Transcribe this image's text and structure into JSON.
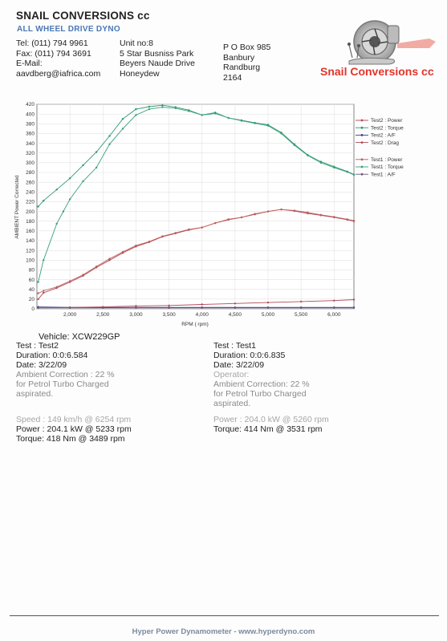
{
  "header": {
    "company": "SNAIL CONVERSIONS cc",
    "tagline": "ALL WHEEL DRIVE DYNO",
    "contact": [
      "Tel: (011) 794 9961",
      "Fax: (011) 794 3691",
      "E-Mail:",
      "aavdberg@iafrica.com"
    ],
    "address": [
      "Unit no:8",
      "5 Star Busniss Park",
      "Beyers Naude Drive",
      "Honeydew"
    ],
    "postal": [
      "P O Box 985",
      "Banbury",
      "Randburg",
      "2164"
    ],
    "logo_text": "Snail Conversions cc"
  },
  "chart_data": {
    "type": "line",
    "ylabel": "AMBIENT Power Corrected",
    "xlabel": "RPM ( rpm)",
    "xlim": [
      1500,
      6300
    ],
    "ylim": [
      0,
      420
    ],
    "xticks": [
      "2,000",
      "2,500",
      "3,000",
      "3,500",
      "4,000",
      "4,500",
      "5,000",
      "5,500",
      "6,000"
    ],
    "yticks": [
      "0",
      "20",
      "40",
      "60",
      "80",
      "100",
      "120",
      "140",
      "160",
      "180",
      "200",
      "220",
      "240",
      "260",
      "280",
      "300",
      "320",
      "340",
      "360",
      "380",
      "400",
      "420"
    ],
    "grid": true,
    "legend_position": "right",
    "legend": [
      "Test2 : Power",
      "Test2 : Torque",
      "Test2 : A/F",
      "Test2 : Drag",
      "Test1 : Power",
      "Test1 : Torque",
      "Test1 : A/F"
    ],
    "series": [
      {
        "name": "Test2 : Power",
        "color": "#b04a56",
        "x": [
          1520,
          1600,
          1800,
          2000,
          2200,
          2400,
          2600,
          2800,
          3000,
          3200,
          3400,
          3600,
          3800,
          4000,
          4200,
          4400,
          4600,
          4800,
          5000,
          5200,
          5400,
          5600,
          5800,
          6000,
          6200,
          6300
        ],
        "y": [
          20,
          33,
          43,
          55,
          68,
          85,
          100,
          115,
          128,
          137,
          148,
          155,
          162,
          167,
          176,
          183,
          188,
          194,
          200,
          204,
          201,
          196,
          192,
          188,
          183,
          180
        ]
      },
      {
        "name": "Test2 : Torque",
        "color": "#2e9a6e",
        "x": [
          1520,
          1600,
          1800,
          2000,
          2200,
          2400,
          2600,
          2800,
          3000,
          3200,
          3400,
          3600,
          3800,
          4000,
          4200,
          4400,
          4600,
          4800,
          5000,
          5200,
          5400,
          5600,
          5800,
          6000,
          6200,
          6300
        ],
        "y": [
          210,
          222,
          245,
          268,
          295,
          322,
          355,
          390,
          410,
          415,
          418,
          414,
          408,
          398,
          403,
          392,
          387,
          382,
          378,
          362,
          338,
          316,
          302,
          292,
          282,
          276
        ]
      },
      {
        "name": "Test2 : A/F",
        "color": "#3c3c8a",
        "x": [
          1520,
          2000,
          2500,
          3000,
          3500,
          4000,
          4500,
          5000,
          5500,
          6000,
          6300
        ],
        "y": [
          4,
          3,
          3,
          3,
          3,
          3,
          3,
          3,
          3,
          3,
          3
        ]
      },
      {
        "name": "Test2 : Drag",
        "color": "#b04a56",
        "x": [
          1520,
          2000,
          2500,
          3000,
          3500,
          4000,
          4500,
          5000,
          5500,
          6000,
          6300
        ],
        "y": [
          2,
          3,
          4,
          6,
          7,
          9,
          11,
          13,
          15,
          17,
          19
        ]
      },
      {
        "name": "Test1 : Power",
        "color": "#c0605c",
        "x": [
          1520,
          1600,
          1800,
          2000,
          2200,
          2400,
          2600,
          2800,
          3000,
          3200,
          3400,
          3600,
          3800,
          4000,
          4200,
          4400,
          4600,
          4800,
          5000,
          5200,
          5400,
          5600,
          5800,
          6000,
          6200,
          6300
        ],
        "y": [
          32,
          37,
          45,
          57,
          70,
          87,
          103,
          117,
          130,
          138,
          149,
          156,
          163,
          167,
          176,
          184,
          188,
          195,
          200,
          204,
          202,
          198,
          193,
          189,
          184,
          181
        ]
      },
      {
        "name": "Test1 : Torque",
        "color": "#3aa07a",
        "x": [
          1520,
          1600,
          1800,
          1900,
          2000,
          2200,
          2400,
          2600,
          2800,
          3000,
          3200,
          3400,
          3600,
          3800,
          4000,
          4200,
          4400,
          4600,
          4800,
          5000,
          5200,
          5400,
          5600,
          5800,
          6000,
          6200,
          6300
        ],
        "y": [
          55,
          100,
          175,
          200,
          225,
          262,
          290,
          338,
          370,
          398,
          410,
          414,
          412,
          406,
          398,
          401,
          392,
          386,
          381,
          376,
          360,
          336,
          315,
          300,
          290,
          281,
          275
        ]
      },
      {
        "name": "Test1 : A/F",
        "color": "#6e5a7e",
        "x": [
          1520,
          2000,
          2500,
          3000,
          3500,
          4000,
          4500,
          5000,
          5500,
          6000,
          6300
        ],
        "y": [
          2,
          2,
          2,
          2,
          2,
          2,
          2,
          2,
          2,
          2,
          2
        ]
      }
    ]
  },
  "vehicle": "Vehicle: XCW229GP",
  "test_left": {
    "test": "Test    : Test2",
    "duration": "Duration: 0:0:6.584",
    "date": "Date:  3/22/09",
    "correction": "Ambient Correction : 22 %",
    "correction2": " for Petrol Turbo Charged",
    "correction3": "aspirated.",
    "speed": "Speed : 149 km/h @ 6254 rpm",
    "power": "Power : 204.1 kW @ 5233 rpm",
    "torque": "Torque: 418 Nm @ 3489 rpm"
  },
  "test_right": {
    "test": "Test    : Test1",
    "duration": "Duration: 0:0:6.835",
    "date": "Date:  3/22/09",
    "operator": "Operator:",
    "correction": "Ambient Correction: 22 %",
    "correction2": " for Petrol Turbo Charged",
    "correction3": "aspirated.",
    "power_grey": "Power : 204.0 kW @ 5260 rpm",
    "torque": "Torque: 414 Nm @ 3531 rpm"
  },
  "footer": "Hyper Power Dynamometer  -  www.hyperdyno.com"
}
